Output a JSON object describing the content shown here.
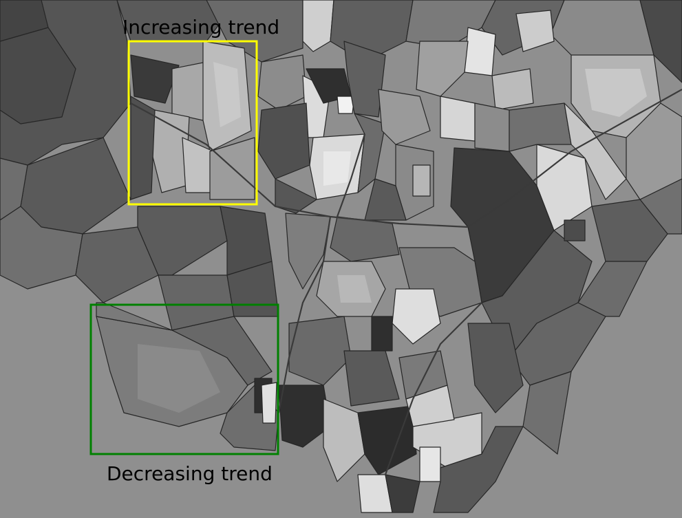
{
  "map": {
    "background_color": "#8f8f8f",
    "annotations": [
      {
        "label": "Increasing trend",
        "box_color": "#ffff00"
      },
      {
        "label": "Decreasing trend",
        "box_color": "#008000"
      }
    ]
  }
}
